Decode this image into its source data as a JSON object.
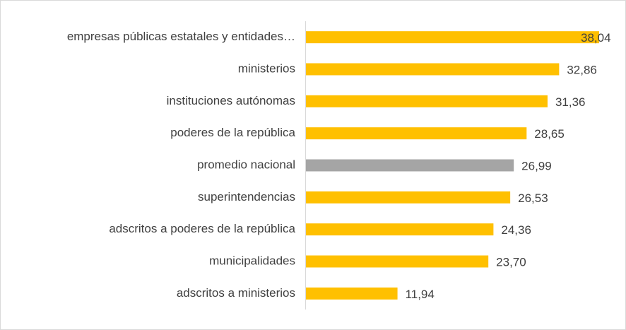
{
  "chart_data": {
    "type": "hbar",
    "categories": [
      "empresas públicas estatales y entidades…",
      "ministerios",
      "instituciones autónomas",
      "poderes de la república",
      "promedio nacional",
      "superintendencias",
      "adscritos a poderes de la república",
      "municipalidades",
      "adscritos a ministerios"
    ],
    "values": [
      38.04,
      32.86,
      31.36,
      28.65,
      26.99,
      26.53,
      24.36,
      23.7,
      11.94
    ],
    "value_labels": [
      "38,04",
      "32,86",
      "31,36",
      "28,65",
      "26,99",
      "26,53",
      "24,36",
      "23,70",
      "11,94"
    ],
    "colors": [
      "#FFC000",
      "#FFC000",
      "#FFC000",
      "#FFC000",
      "#A5A5A5",
      "#FFC000",
      "#FFC000",
      "#FFC000",
      "#FFC000"
    ]
  }
}
